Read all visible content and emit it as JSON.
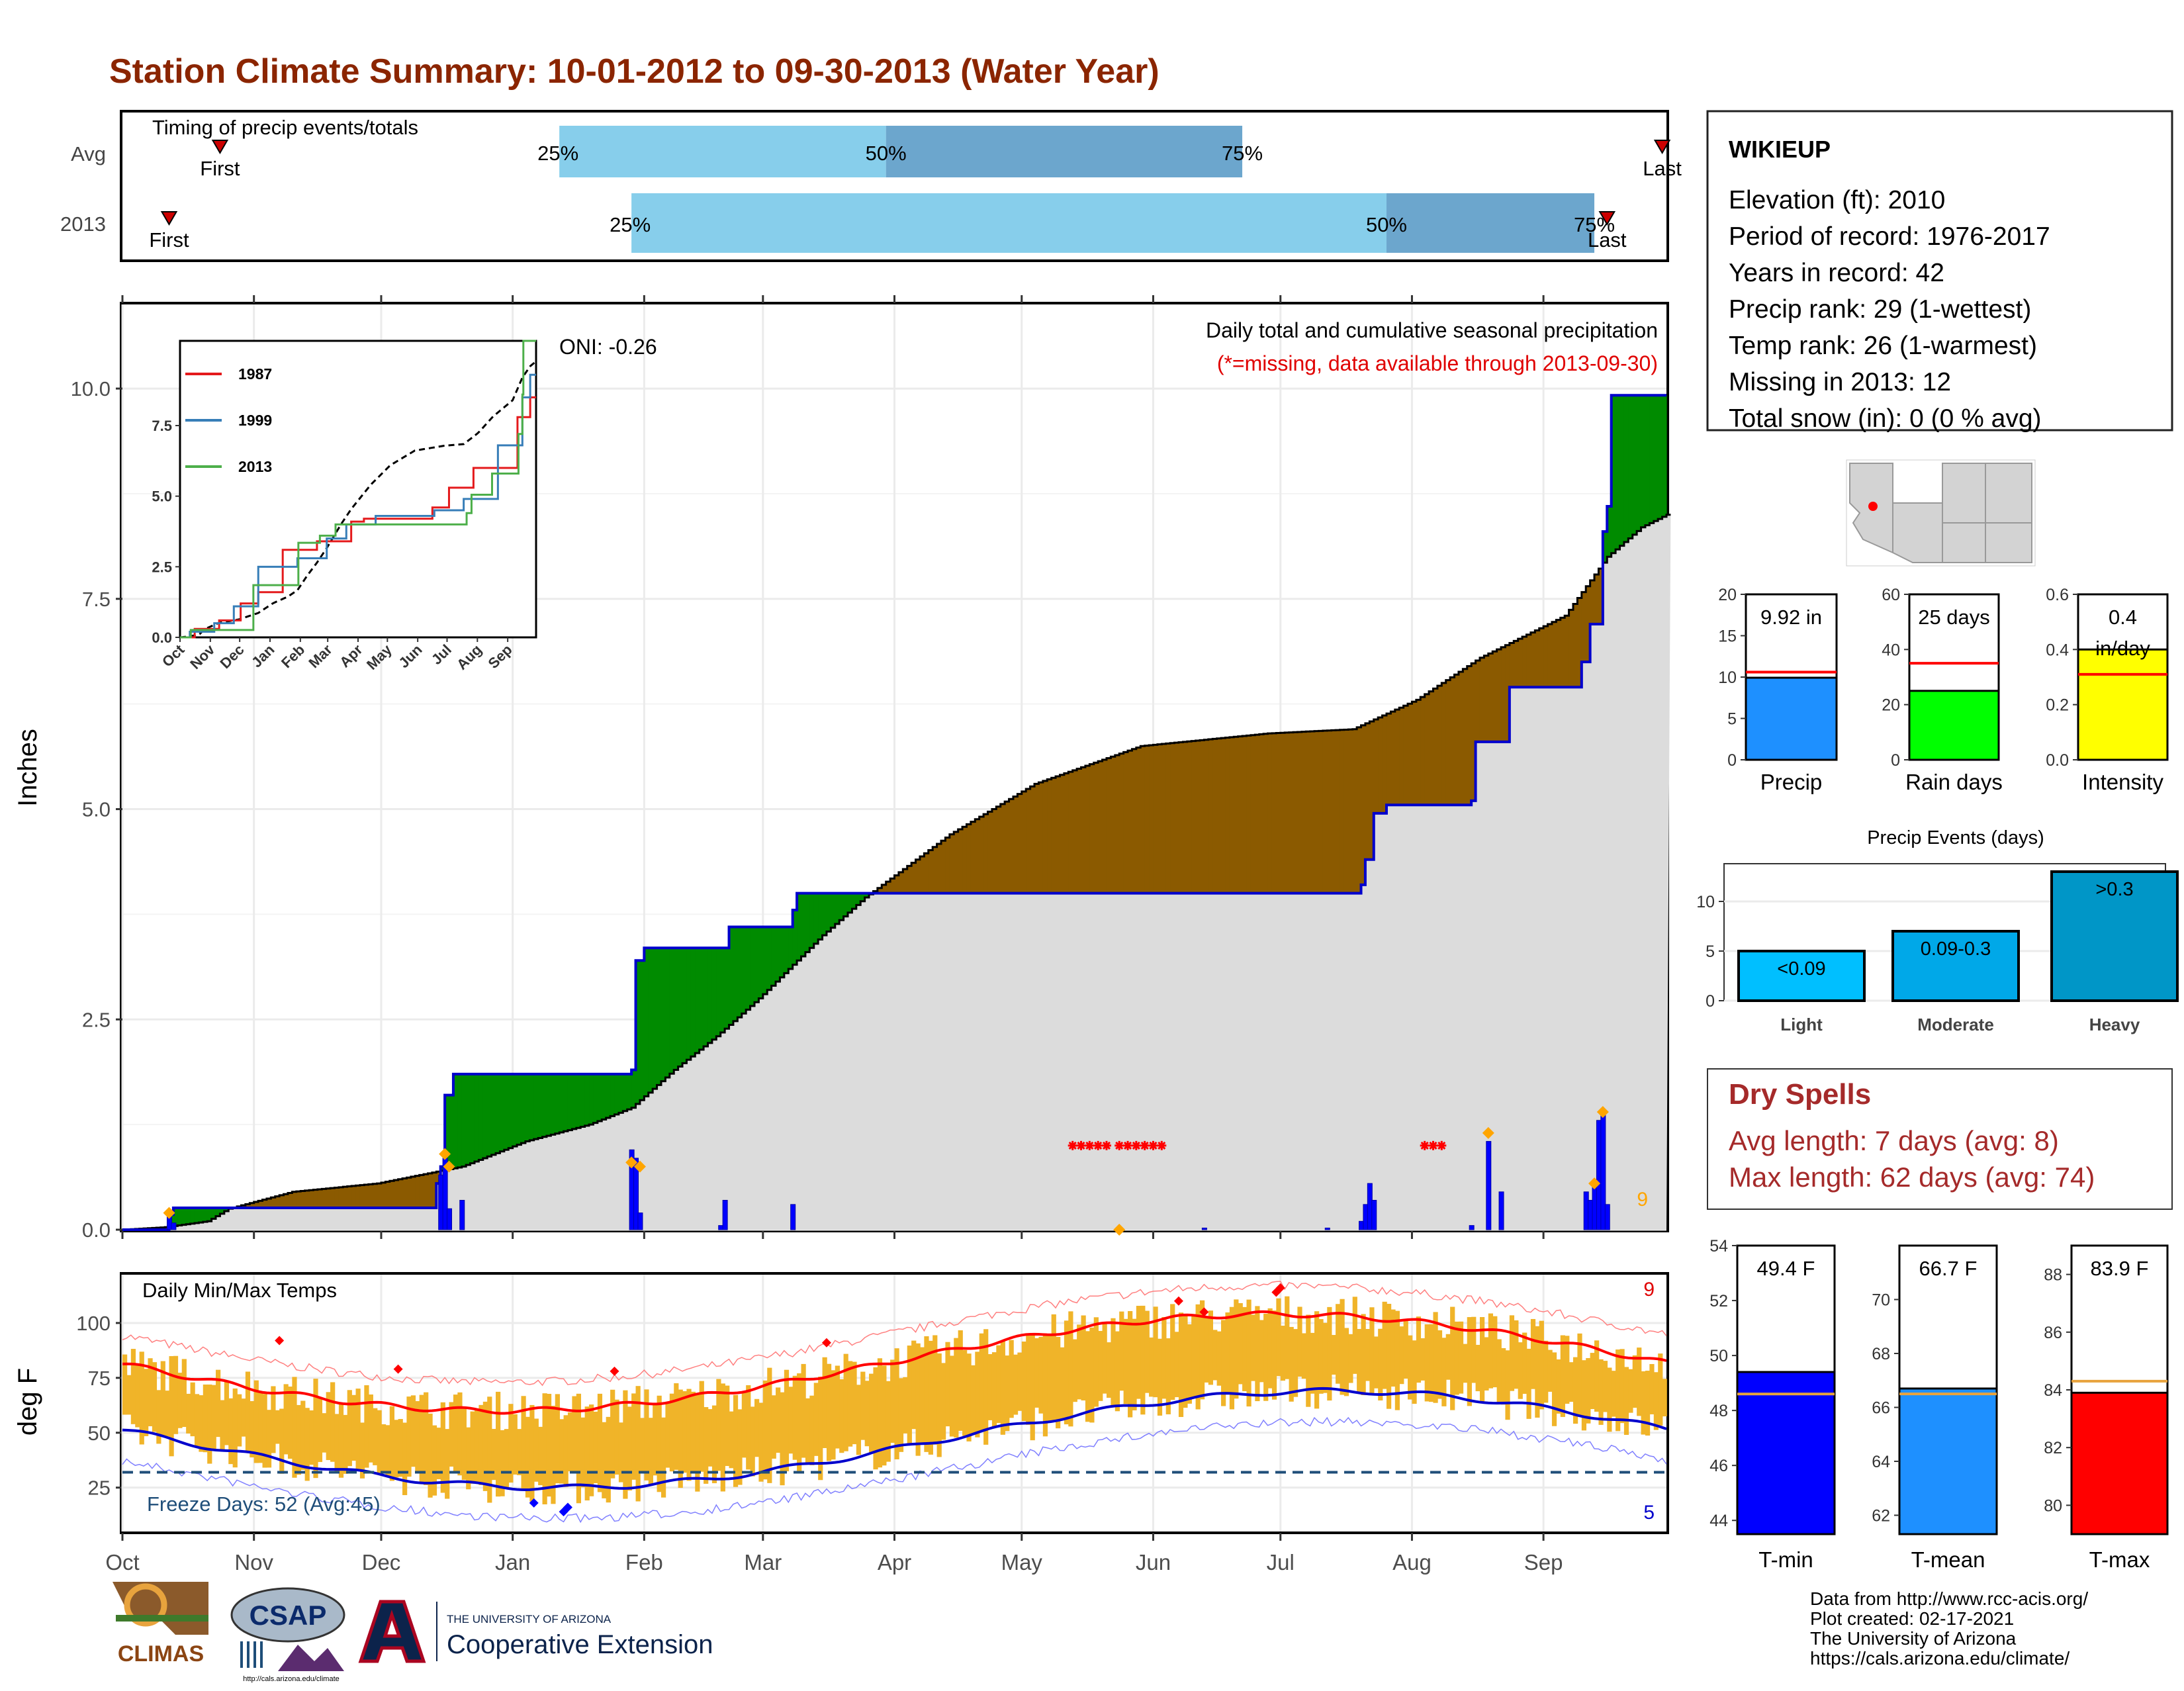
{
  "header": {
    "title": "Station Climate Summary: 10-01-2012 to 09-30-2013 (Water Year)",
    "title_color": "#8B2500"
  },
  "timing": {
    "title": "Timing of precip events/totals",
    "rows": [
      {
        "label": "Avg",
        "first_day": 23,
        "p25_day": 103,
        "p50_day": 180,
        "p75_day": 264,
        "last_day": 363,
        "p25_text": "25%",
        "p50_text": "50%",
        "p75_text": "75%",
        "first_text": "First",
        "last_text": "Last"
      },
      {
        "label": "2013",
        "first_day": 11,
        "p25_day": 120,
        "p50_day": 298,
        "p75_day": 347,
        "last_day": 350,
        "p25_text": "25%",
        "p50_text": "50%",
        "p75_text": "75%",
        "first_text": "First",
        "last_text": "Last"
      }
    ],
    "colors": {
      "light": "#87CEEB",
      "dark": "#6CA6CD",
      "marker": "#CC0000"
    }
  },
  "station": {
    "name": "WIKIEUP",
    "lines": [
      "Elevation (ft): 2010",
      "Period of record: 1976-2017",
      "Years in record: 42",
      "Precip rank: 29 (1-wettest)",
      "Temp rank: 26 (1-warmest)",
      "Missing in 2013: 12",
      "Total snow (in): 0 (0 % avg)"
    ]
  },
  "precip_panel": {
    "ylabel": "Inches",
    "note1": "Daily total and cumulative seasonal precipitation",
    "note2": "(*=missing, data available through 2013-09-30)",
    "oni": "ONI: -0.26",
    "corner_count": "9",
    "y_ticks": [
      "0.0",
      "2.5",
      "5.0",
      "7.5",
      "10.0"
    ],
    "colors": {
      "above": "#008B00",
      "below": "#8B5A00",
      "cum": "#0000CC",
      "avg_fill": "#DCDCDC",
      "bars": "#0000FF",
      "missing": "#FF0000",
      "extreme": "#FFA500"
    }
  },
  "inset": {
    "y_ticks": [
      "0.0",
      "2.5",
      "5.0",
      "7.5"
    ],
    "x_ticks": [
      "Oct",
      "Nov",
      "Dec",
      "Jan",
      "Feb",
      "Mar",
      "Apr",
      "May",
      "Jun",
      "Jul",
      "Aug",
      "Sep"
    ],
    "legend": [
      {
        "name": "1987",
        "color": "#E41A1C"
      },
      {
        "name": "1999",
        "color": "#377EB8"
      },
      {
        "name": "2013",
        "color": "#4DAF4A"
      }
    ]
  },
  "temp_panel": {
    "ylabel": "deg F",
    "title": "Daily Min/Max Temps",
    "freeze_text": "Freeze Days: 52 (Avg:45)",
    "count_hot": "9",
    "count_cold": "5",
    "y_ticks": [
      "25",
      "50",
      "75",
      "100"
    ],
    "colors": {
      "bars": "#F0B429",
      "max_avg": "#FF0000",
      "min_avg": "#0000CC",
      "freeze": "#1F4E79"
    }
  },
  "months": [
    "Oct",
    "Nov",
    "Dec",
    "Jan",
    "Feb",
    "Mar",
    "Apr",
    "May",
    "Jun",
    "Jul",
    "Aug",
    "Sep"
  ],
  "precip_summary": {
    "bars": [
      {
        "label": "Precip",
        "value_text": "9.92 in",
        "value": 9.92,
        "avg": 10.6,
        "max": 20,
        "ticks": [
          "0",
          "5",
          "10",
          "15",
          "20"
        ],
        "color": "#1E90FF"
      },
      {
        "label": "Rain days",
        "value_text": "25 days",
        "value": 25,
        "avg": 35,
        "max": 60,
        "ticks": [
          "0",
          "20",
          "40",
          "60"
        ],
        "color": "#00FF00"
      },
      {
        "label": "Intensity",
        "value_text": "0.4",
        "value_text2": "in/day",
        "value": 0.4,
        "avg": 0.31,
        "max": 0.6,
        "ticks": [
          "0.0",
          "0.2",
          "0.4",
          "0.6"
        ],
        "color": "#FFFF00"
      }
    ]
  },
  "events": {
    "title": "Precip Events (days)",
    "ticks": [
      "0",
      "5",
      "10"
    ],
    "bars": [
      {
        "label": "Light",
        "text": "<0.09",
        "value": 5,
        "color": "#00BFFF"
      },
      {
        "label": "Moderate",
        "text": "0.09-0.3",
        "value": 7,
        "color": "#00A8E8"
      },
      {
        "label": "Heavy",
        "text": ">0.3",
        "value": 13,
        "color": "#0096C7"
      }
    ]
  },
  "dry_spells": {
    "title": "Dry Spells",
    "line1": "Avg length: 7 days (avg: 8)",
    "line2": "Max length: 62 days (avg: 74)",
    "color": "#A52A2A"
  },
  "temp_summary": {
    "bars": [
      {
        "label": "T-min",
        "value_text": "49.4 F",
        "value": 49.4,
        "avg": 48.6,
        "min": 43.5,
        "max": 54,
        "ticks": [
          "44",
          "46",
          "48",
          "50",
          "52",
          "54"
        ],
        "color": "#0000FF"
      },
      {
        "label": "T-mean",
        "value_text": "66.7 F",
        "value": 66.7,
        "avg": 66.5,
        "min": 61.3,
        "max": 72,
        "ticks": [
          "62",
          "64",
          "66",
          "68",
          "70"
        ],
        "color": "#1E90FF"
      },
      {
        "label": "T-max",
        "value_text": "83.9 F",
        "value": 83.9,
        "avg": 84.3,
        "min": 79,
        "max": 89,
        "ticks": [
          "80",
          "82",
          "84",
          "86",
          "88"
        ],
        "color": "#FF0000"
      }
    ],
    "avg_color": "#E8A33D"
  },
  "footer": {
    "lines": [
      "Data from http://www.rcc-acis.org/",
      "Plot created: 02-17-2021",
      "The University of Arizona",
      "https://cals.arizona.edu/climate/"
    ],
    "climas": "CLIMAS",
    "csap": "CSAP",
    "csap_url": "http://cals.arizona.edu/climate",
    "ua_small": "THE UNIVERSITY OF ARIZONA",
    "ua_big": "Cooperative Extension"
  }
}
